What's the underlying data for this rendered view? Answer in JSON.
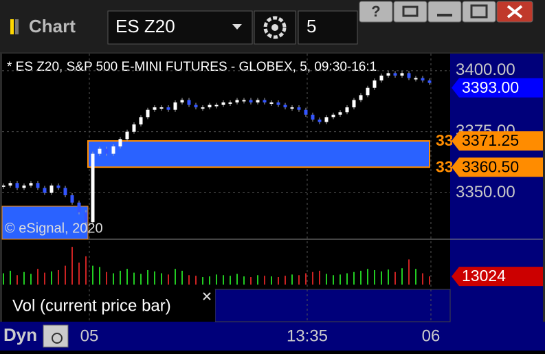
{
  "toolbar": {
    "title": "Chart",
    "symbol": "ES Z20",
    "interval": "5"
  },
  "footer": {
    "mode": "Dyn"
  },
  "chart_data": [
    {
      "type": "candlestick",
      "title": "* ES Z20, S&P 500 E-MINI FUTURES - GLOBEX, 5, 09:30-16:1",
      "watermark": "© eSignal, 2020",
      "values": [
        3353,
        3354,
        3352,
        3353,
        3354,
        3352,
        3350,
        3353,
        3352,
        3349,
        3346,
        3342,
        3338,
        3366,
        3368,
        3366,
        3369,
        3372,
        3375,
        3378,
        3381,
        3384,
        3385,
        3385,
        3384,
        3387,
        3388,
        3386,
        3385,
        3385,
        3386,
        3386,
        3387,
        3387,
        3388,
        3388,
        3387,
        3388,
        3387,
        3387,
        3386,
        3385,
        3385,
        3384,
        3382,
        3380,
        3379,
        3381,
        3382,
        3383,
        3385,
        3388,
        3390,
        3393,
        3396,
        3398,
        3399,
        3398,
        3399,
        3397,
        3397,
        3396,
        3395
      ],
      "up_color": "#ffffff",
      "down_color": "#3355ff",
      "ylim": [
        3331,
        3407
      ],
      "yticks": [
        {
          "value": 3400,
          "label": "3400.00"
        },
        {
          "value": 3375,
          "label": "3375.00"
        },
        {
          "value": 3350,
          "label": "3350.00"
        }
      ],
      "xlim": [
        -0.2,
        65
      ],
      "xticks": [
        {
          "value": 12.5,
          "label": "05"
        },
        {
          "value": 44.2,
          "label": "13:35"
        },
        {
          "value": 62.2,
          "label": "06"
        }
      ],
      "grid": true,
      "price_tags": [
        {
          "value": 3393,
          "label": "3393.00",
          "color": "#0000ff"
        },
        {
          "value": 3371.25,
          "label": "3371.25",
          "color": "#ff8c00"
        },
        {
          "value": 3360.5,
          "label": "3360.50",
          "color": "#ff8c00"
        }
      ],
      "zone_color": "#2a62ff"
    },
    {
      "type": "bar",
      "legend": "Vol (current price bar)",
      "values": [
        18000,
        22000,
        15000,
        20000,
        17000,
        25000,
        19000,
        21000,
        23000,
        30000,
        60000,
        35000,
        45000,
        30000,
        28000,
        20000,
        18000,
        22000,
        25000,
        19000,
        17000,
        23000,
        21000,
        18000,
        16000,
        25000,
        22000,
        15000,
        14000,
        12000,
        13000,
        16000,
        15000,
        14000,
        17000,
        13000,
        12000,
        15000,
        14000,
        13000,
        12000,
        14000,
        16000,
        15000,
        18000,
        20000,
        22000,
        17000,
        15000,
        16000,
        18000,
        20000,
        22000,
        25000,
        23000,
        21000,
        24000,
        20000,
        26000,
        40000,
        25000,
        18000,
        13024
      ],
      "up_color": "#22cc22",
      "down_color": "#cc2222",
      "ylim": [
        0,
        70000
      ],
      "price_tag": {
        "value": 13024,
        "color": "#cc0000"
      }
    }
  ]
}
